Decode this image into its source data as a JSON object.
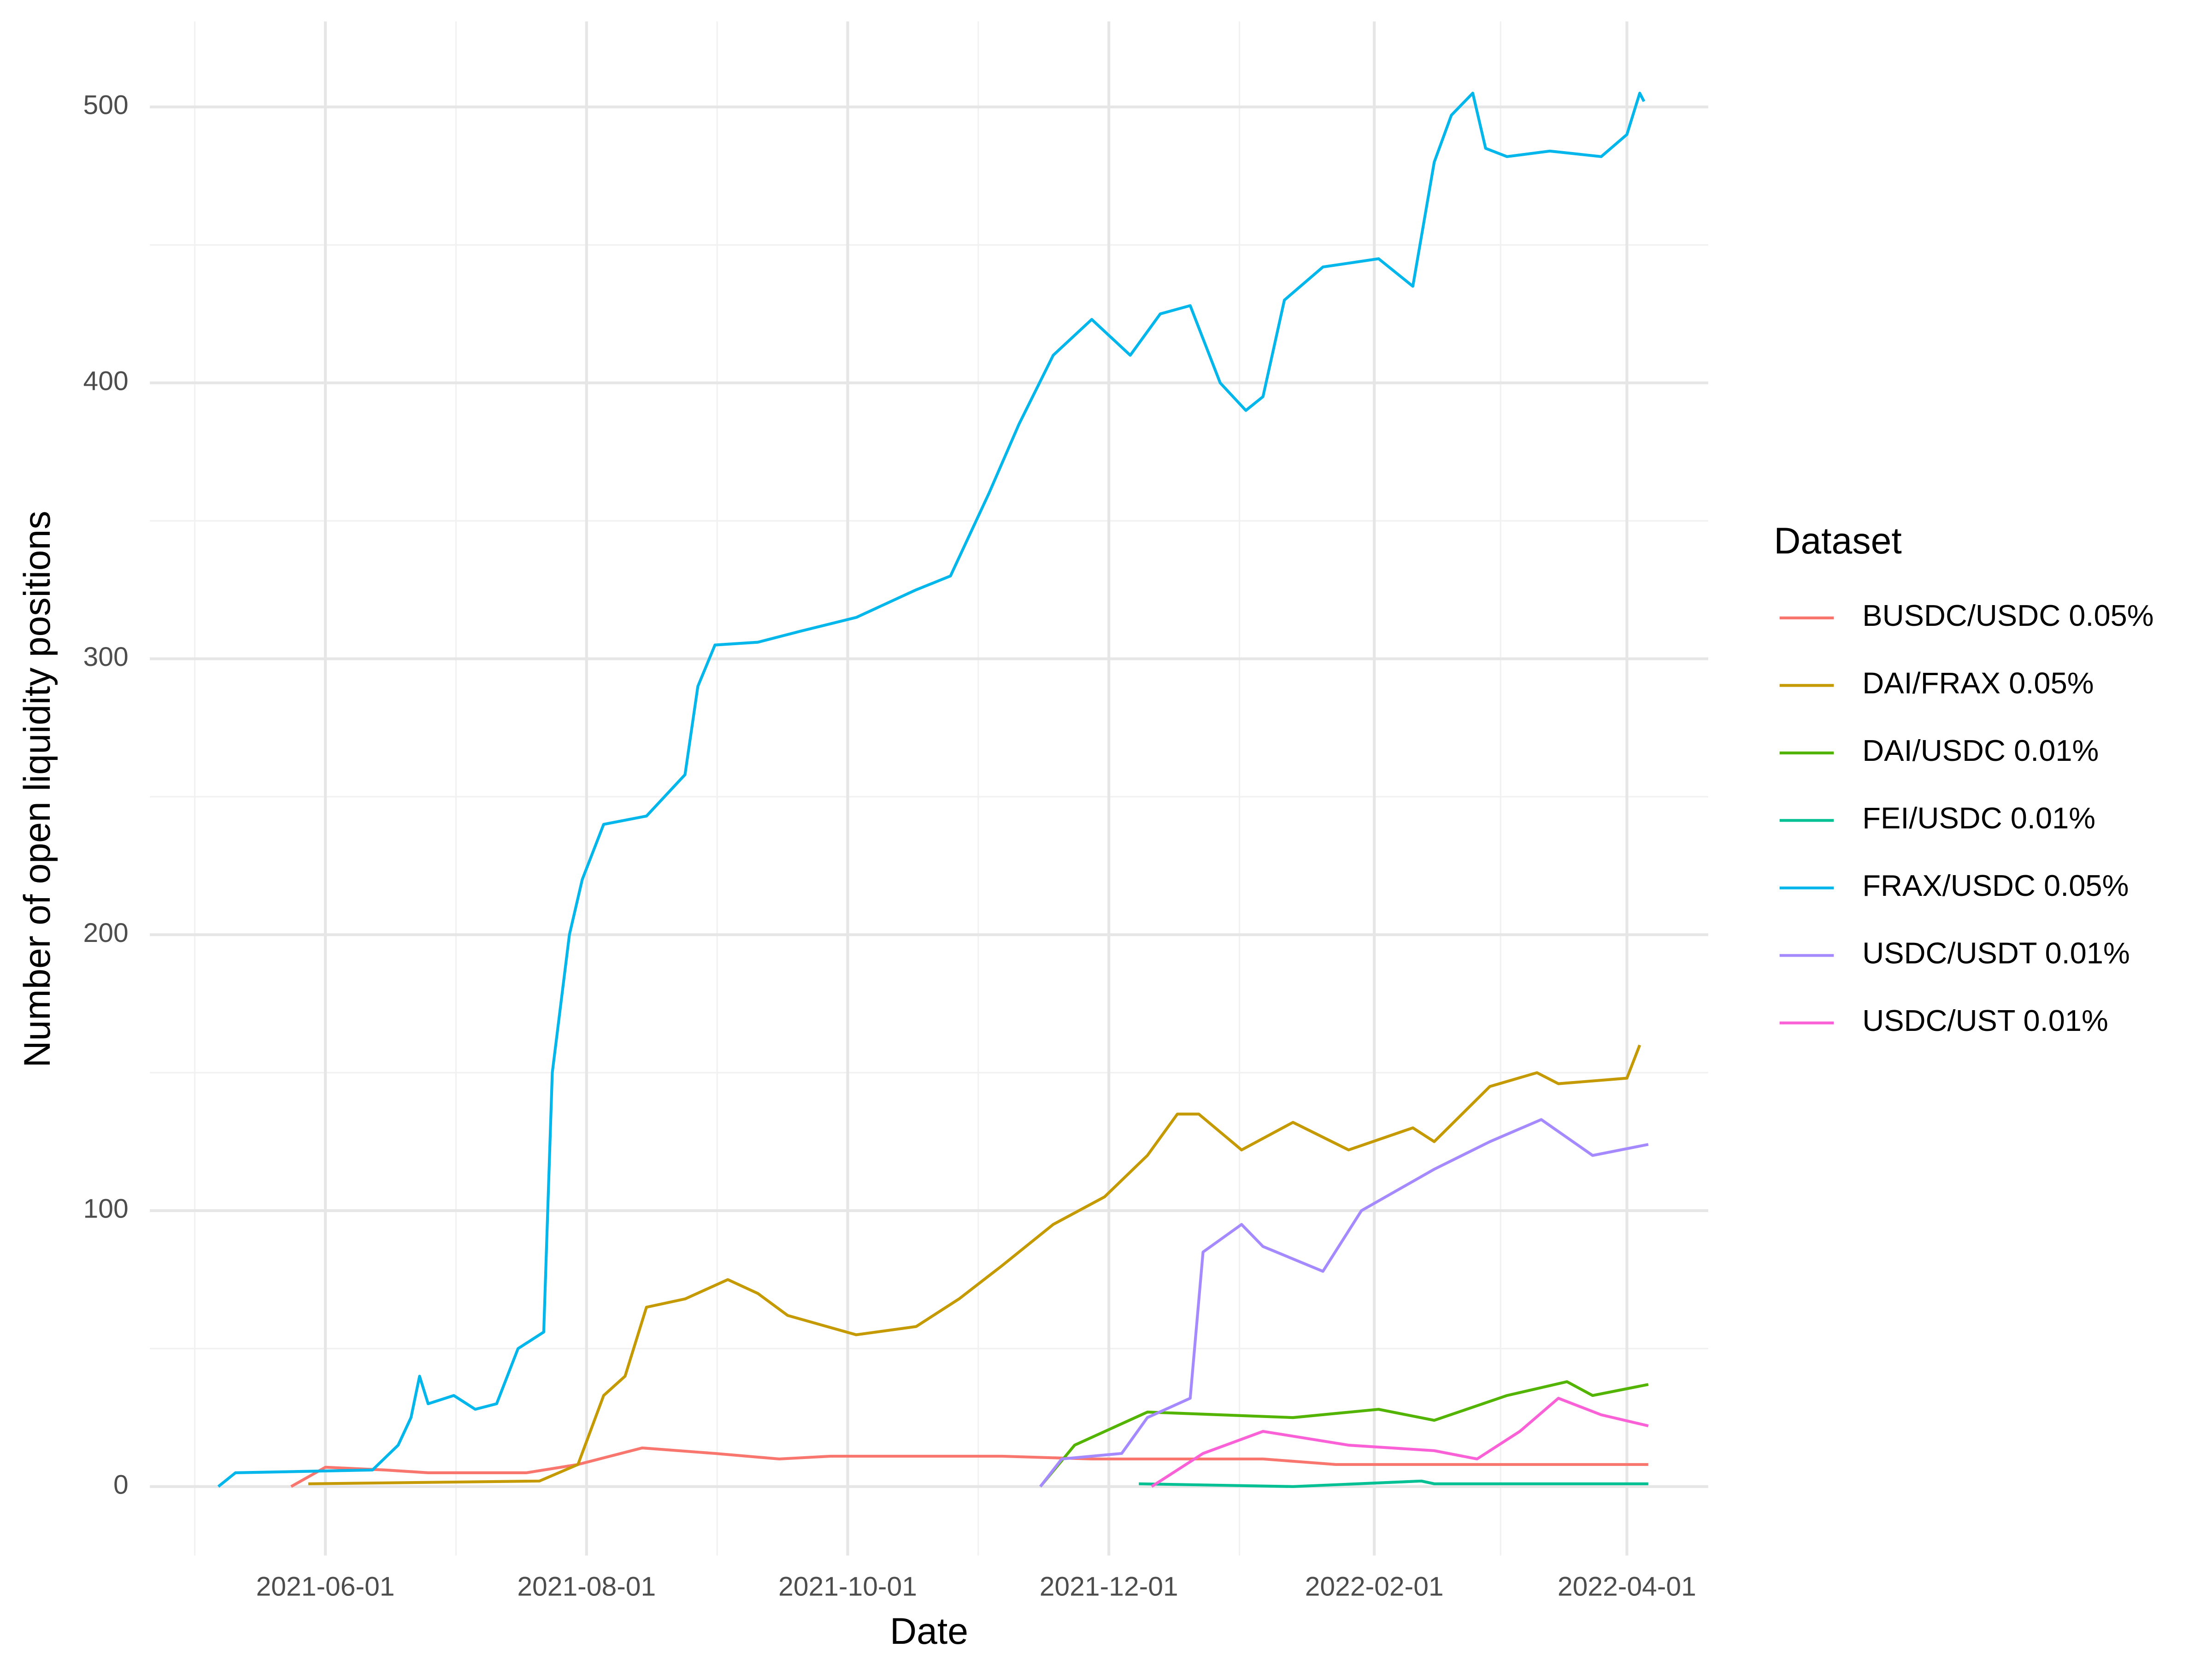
{
  "chart_data": {
    "type": "line",
    "x_label": "Date",
    "y_label": "Number of open liquidity positions",
    "legend_title": "Dataset",
    "legend_position": "right",
    "grid": true,
    "xlim": [
      "2021-04-21",
      "2022-04-20"
    ],
    "xticks": [
      "2021-06-01",
      "2021-08-01",
      "2021-10-01",
      "2021-12-01",
      "2022-02-01",
      "2022-04-01"
    ],
    "ylim": [
      -25,
      531
    ],
    "yticks": [
      0,
      100,
      200,
      300,
      400,
      500
    ],
    "series": [
      {
        "name": "BUSDC/USDC 0.05%",
        "color": "#F8766D",
        "x": [
          "2021-05-24",
          "2021-06-01",
          "2021-06-15",
          "2021-06-25",
          "2021-07-18",
          "2021-07-30",
          "2021-08-14",
          "2021-08-31",
          "2021-09-15",
          "2021-09-27",
          "2021-11-06",
          "2021-11-27",
          "2022-01-06",
          "2022-01-23",
          "2022-04-06"
        ],
        "values": [
          0,
          7,
          6,
          5,
          5,
          8,
          14,
          12,
          10,
          11,
          11,
          10,
          10,
          8,
          8
        ]
      },
      {
        "name": "DAI/FRAX 0.05%",
        "color": "#C49A00",
        "x": [
          "2021-05-28",
          "2021-07-21",
          "2021-07-30",
          "2021-08-05",
          "2021-08-10",
          "2021-08-15",
          "2021-08-24",
          "2021-09-03",
          "2021-09-10",
          "2021-09-17",
          "2021-10-03",
          "2021-10-17",
          "2021-10-27",
          "2021-11-06",
          "2021-11-18",
          "2021-11-30",
          "2021-12-10",
          "2021-12-17",
          "2021-12-22",
          "2022-01-01",
          "2022-01-13",
          "2022-01-26",
          "2022-02-10",
          "2022-02-15",
          "2022-02-28",
          "2022-03-11",
          "2022-03-16",
          "2022-04-01",
          "2022-04-04"
        ],
        "values": [
          1,
          2,
          8,
          33,
          40,
          65,
          68,
          75,
          70,
          62,
          55,
          58,
          68,
          80,
          95,
          105,
          120,
          135,
          135,
          122,
          132,
          122,
          130,
          125,
          145,
          150,
          146,
          148,
          160
        ]
      },
      {
        "name": "DAI/USDC 0.01%",
        "color": "#53B400",
        "x": [
          "2021-11-15",
          "2021-11-23",
          "2021-12-10",
          "2021-12-27",
          "2022-01-13",
          "2022-02-02",
          "2022-02-15",
          "2022-03-04",
          "2022-03-18",
          "2022-03-24",
          "2022-04-06"
        ],
        "values": [
          0,
          15,
          27,
          26,
          25,
          28,
          24,
          33,
          38,
          33,
          37
        ]
      },
      {
        "name": "FEI/USDC 0.01%",
        "color": "#00C094",
        "x": [
          "2021-12-08",
          "2022-01-13",
          "2022-02-12",
          "2022-02-15",
          "2022-04-06"
        ],
        "values": [
          1,
          0,
          2,
          1,
          1
        ]
      },
      {
        "name": "FRAX/USDC 0.05%",
        "color": "#00B6EB",
        "x": [
          "2021-05-07",
          "2021-05-11",
          "2021-06-12",
          "2021-06-18",
          "2021-06-21",
          "2021-06-23",
          "2021-06-25",
          "2021-07-01",
          "2021-07-06",
          "2021-07-11",
          "2021-07-16",
          "2021-07-22",
          "2021-07-24",
          "2021-07-28",
          "2021-07-31",
          "2021-08-05",
          "2021-08-15",
          "2021-08-24",
          "2021-08-27",
          "2021-08-31",
          "2021-09-10",
          "2021-09-20",
          "2021-10-03",
          "2021-10-17",
          "2021-10-25",
          "2021-11-03",
          "2021-11-10",
          "2021-11-18",
          "2021-11-27",
          "2021-12-06",
          "2021-12-13",
          "2021-12-20",
          "2021-12-27",
          "2022-01-02",
          "2022-01-06",
          "2022-01-11",
          "2022-01-20",
          "2022-02-02",
          "2022-02-10",
          "2022-02-15",
          "2022-02-19",
          "2022-02-24",
          "2022-02-27",
          "2022-03-04",
          "2022-03-14",
          "2022-03-26",
          "2022-04-01",
          "2022-04-04",
          "2022-04-05"
        ],
        "values": [
          0,
          5,
          6,
          15,
          25,
          40,
          30,
          33,
          28,
          30,
          50,
          56,
          150,
          200,
          220,
          240,
          243,
          258,
          290,
          305,
          306,
          310,
          315,
          325,
          330,
          360,
          385,
          410,
          423,
          410,
          425,
          428,
          400,
          390,
          395,
          430,
          442,
          445,
          435,
          480,
          497,
          505,
          485,
          482,
          484,
          482,
          490,
          505,
          502
        ]
      },
      {
        "name": "USDC/USDT 0.01%",
        "color": "#A58AFF",
        "x": [
          "2021-11-15",
          "2021-11-20",
          "2021-12-04",
          "2021-12-10",
          "2021-12-20",
          "2021-12-23",
          "2022-01-01",
          "2022-01-06",
          "2022-01-20",
          "2022-01-29",
          "2022-02-15",
          "2022-02-28",
          "2022-03-12",
          "2022-03-24",
          "2022-04-06"
        ],
        "values": [
          0,
          10,
          12,
          25,
          32,
          85,
          95,
          87,
          78,
          100,
          115,
          125,
          133,
          120,
          124
        ]
      },
      {
        "name": "USDC/UST 0.01%",
        "color": "#FB61D7",
        "x": [
          "2021-12-11",
          "2021-12-23",
          "2022-01-06",
          "2022-01-26",
          "2022-02-15",
          "2022-02-25",
          "2022-03-07",
          "2022-03-16",
          "2022-03-26",
          "2022-04-06"
        ],
        "values": [
          0,
          12,
          20,
          15,
          13,
          10,
          20,
          32,
          26,
          22
        ]
      }
    ]
  }
}
